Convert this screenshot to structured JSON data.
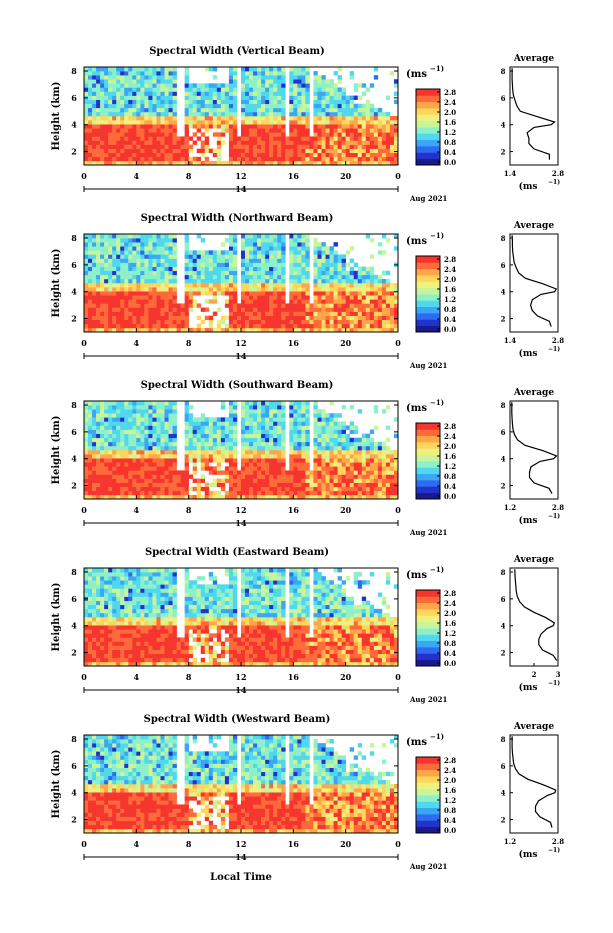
{
  "figure": {
    "xlabel": "Local Time",
    "ylabel": "Height (km)",
    "unit_label": "(ms",
    "unit_exp": "−1)",
    "date_day": "14",
    "date_label": "Aug 2021",
    "avg_title": "Average",
    "avg_xlabel": "(ms",
    "avg_xlabel_exp": "−1)",
    "colorbar_ticks": [
      "0.0",
      "0.4",
      "0.8",
      "1.2",
      "1.6",
      "2.0",
      "2.4",
      "2.8"
    ],
    "colormap": [
      "#1a1a8c",
      "#2233cc",
      "#2f6bf0",
      "#3aa6f5",
      "#4fd8ee",
      "#8ef0c8",
      "#c8f59a",
      "#eef080",
      "#ffd65a",
      "#ffa64a",
      "#ff6a3a",
      "#f5352e"
    ],
    "missing_color": "#ffffff"
  },
  "chart_data": [
    {
      "type": "heatmap",
      "title": "Spectral Width (Vertical Beam)",
      "x": {
        "ticks": [
          "0",
          "4",
          "8",
          "12",
          "16",
          "20",
          "0"
        ],
        "range": [
          0,
          24
        ]
      },
      "y": {
        "ticks": [
          "2",
          "4",
          "6",
          "8"
        ],
        "range": [
          1,
          8.3
        ]
      },
      "colorbar": {
        "range": [
          0,
          2.8
        ]
      },
      "description_values": {
        "low_layer_below_km": 4,
        "low_layer_width": 2.7,
        "upper_layer_width": 1.4
      },
      "average_profile": {
        "xlim": [
          1.4,
          2.8
        ],
        "xticks": [
          "1.4",
          "2.8"
        ],
        "height": [
          1.4,
          1.8,
          2.2,
          2.6,
          3.0,
          3.4,
          3.8,
          4.0,
          4.2,
          4.6,
          5.0,
          5.4,
          5.8,
          6.2,
          6.6,
          7.0,
          7.4,
          7.8,
          8.2
        ],
        "width": [
          2.55,
          2.55,
          2.1,
          1.95,
          1.95,
          1.9,
          2.1,
          2.6,
          2.7,
          2.2,
          1.7,
          1.6,
          1.55,
          1.5,
          1.48,
          1.47,
          1.46,
          1.46,
          1.46
        ]
      }
    },
    {
      "type": "heatmap",
      "title": "Spectral Width (Northward Beam)",
      "x": {
        "ticks": [
          "0",
          "4",
          "8",
          "12",
          "16",
          "20",
          "0"
        ],
        "range": [
          0,
          24
        ]
      },
      "y": {
        "ticks": [
          "2",
          "4",
          "6",
          "8"
        ],
        "range": [
          1,
          8.3
        ]
      },
      "colorbar": {
        "range": [
          0,
          2.8
        ]
      },
      "average_profile": {
        "xlim": [
          1.4,
          2.8
        ],
        "xticks": [
          "1.4",
          "2.8"
        ],
        "height": [
          1.4,
          1.8,
          2.2,
          2.6,
          3.0,
          3.4,
          3.8,
          4.0,
          4.2,
          4.6,
          5.0,
          5.4,
          5.8,
          6.2,
          6.6,
          7.0,
          7.4,
          7.8,
          8.2
        ],
        "width": [
          2.6,
          2.55,
          2.2,
          2.05,
          2.0,
          2.05,
          2.3,
          2.7,
          2.75,
          2.35,
          1.85,
          1.65,
          1.58,
          1.52,
          1.5,
          1.48,
          1.47,
          1.47,
          1.46
        ]
      }
    },
    {
      "type": "heatmap",
      "title": "Spectral Width (Southward Beam)",
      "x": {
        "ticks": [
          "0",
          "4",
          "8",
          "12",
          "16",
          "20",
          "0"
        ],
        "range": [
          0,
          24
        ]
      },
      "y": {
        "ticks": [
          "2",
          "4",
          "6",
          "8"
        ],
        "range": [
          1,
          8.3
        ]
      },
      "colorbar": {
        "range": [
          0,
          2.8
        ]
      },
      "average_profile": {
        "xlim": [
          1.2,
          2.8
        ],
        "xticks": [
          "1.2",
          "2.8"
        ],
        "height": [
          1.4,
          1.8,
          2.2,
          2.6,
          3.0,
          3.4,
          3.8,
          4.0,
          4.2,
          4.6,
          5.0,
          5.4,
          5.8,
          6.2,
          6.6,
          7.0,
          7.4,
          7.8,
          8.2
        ],
        "width": [
          2.6,
          2.5,
          2.0,
          1.85,
          1.85,
          1.9,
          2.2,
          2.65,
          2.75,
          2.3,
          1.7,
          1.45,
          1.35,
          1.3,
          1.28,
          1.27,
          1.26,
          1.26,
          1.26
        ]
      }
    },
    {
      "type": "heatmap",
      "title": "Spectral Width (Eastward Beam)",
      "x": {
        "ticks": [
          "0",
          "4",
          "8",
          "12",
          "16",
          "20",
          "0"
        ],
        "range": [
          0,
          24
        ]
      },
      "y": {
        "ticks": [
          "2",
          "4",
          "6",
          "8"
        ],
        "range": [
          1,
          8.3
        ]
      },
      "colorbar": {
        "range": [
          0,
          2.8
        ]
      },
      "average_profile": {
        "xlim": [
          1.0,
          3.0
        ],
        "xticks": [
          "2",
          "3"
        ],
        "height": [
          1.4,
          1.8,
          2.2,
          2.6,
          3.0,
          3.4,
          3.8,
          4.0,
          4.2,
          4.6,
          5.0,
          5.4,
          5.8,
          6.2,
          6.6,
          7.0,
          7.4,
          7.8,
          8.2
        ],
        "width": [
          2.95,
          2.8,
          2.35,
          2.2,
          2.2,
          2.3,
          2.55,
          2.8,
          2.85,
          2.5,
          2.0,
          1.6,
          1.4,
          1.3,
          1.26,
          1.24,
          1.22,
          1.21,
          1.2
        ]
      }
    },
    {
      "type": "heatmap",
      "title": "Spectral Width (Westward Beam)",
      "x": {
        "ticks": [
          "0",
          "4",
          "8",
          "12",
          "16",
          "20",
          "0"
        ],
        "range": [
          0,
          24
        ]
      },
      "y": {
        "ticks": [
          "2",
          "4",
          "6",
          "8"
        ],
        "range": [
          1,
          8.3
        ]
      },
      "colorbar": {
        "range": [
          0,
          2.8
        ]
      },
      "average_profile": {
        "xlim": [
          1.2,
          2.8
        ],
        "xticks": [
          "1.2",
          "2.8"
        ],
        "height": [
          1.4,
          1.8,
          2.2,
          2.6,
          3.0,
          3.4,
          3.8,
          4.0,
          4.2,
          4.6,
          5.0,
          5.4,
          5.8,
          6.2,
          6.6,
          7.0,
          7.4,
          7.8,
          8.2
        ],
        "width": [
          2.6,
          2.55,
          2.2,
          2.05,
          2.05,
          2.15,
          2.45,
          2.7,
          2.72,
          2.3,
          1.8,
          1.5,
          1.38,
          1.32,
          1.3,
          1.28,
          1.27,
          1.27,
          1.27
        ]
      }
    }
  ]
}
